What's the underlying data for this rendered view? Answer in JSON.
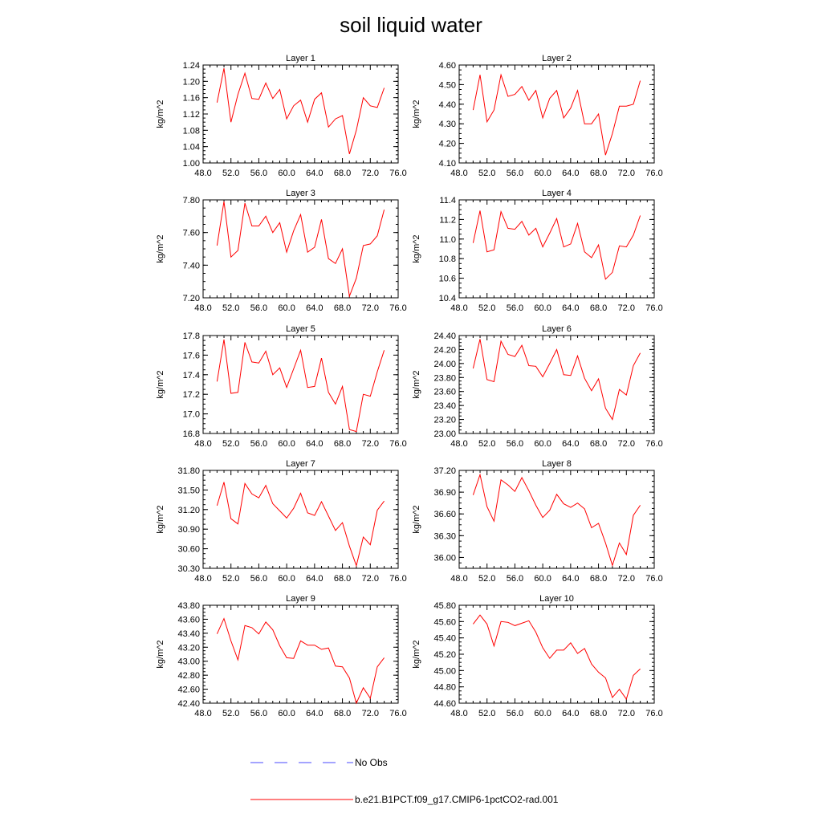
{
  "title": "soil liquid water",
  "legend": {
    "items": [
      {
        "label": "No Obs",
        "color": "#4a4aff",
        "dash": true
      },
      {
        "label": "b.e21.B1PCT.f09_g17.CMIP6-1pctCO2-rad.001",
        "color": "#ff0000",
        "dash": false
      }
    ]
  },
  "chart_data": [
    {
      "type": "line",
      "title": "Layer 1",
      "xlabel": "",
      "ylabel": "kg/m^2",
      "xlim": [
        48,
        76
      ],
      "ylim": [
        1.0,
        1.24
      ],
      "xticks": [
        "48.0",
        "52.0",
        "56.0",
        "60.0",
        "64.0",
        "68.0",
        "72.0",
        "76.0"
      ],
      "yticks": [
        "1.00",
        "1.04",
        "1.08",
        "1.12",
        "1.16",
        "1.20",
        "1.24"
      ],
      "series": [
        {
          "color": "#ff0000",
          "x": [
            50,
            51,
            52,
            53,
            54,
            55,
            56,
            57,
            58,
            59,
            60,
            61,
            62,
            63,
            64,
            65,
            66,
            67,
            68,
            69,
            70,
            71,
            72,
            73,
            74
          ],
          "values": [
            1.148,
            1.232,
            1.1,
            1.168,
            1.22,
            1.158,
            1.156,
            1.196,
            1.158,
            1.18,
            1.108,
            1.14,
            1.154,
            1.1,
            1.156,
            1.172,
            1.088,
            1.108,
            1.116,
            1.022,
            1.08,
            1.16,
            1.14,
            1.136,
            1.184
          ]
        }
      ]
    },
    {
      "type": "line",
      "title": "Layer 2",
      "xlabel": "",
      "ylabel": "kg/m^2",
      "xlim": [
        48,
        76
      ],
      "ylim": [
        4.1,
        4.6
      ],
      "xticks": [
        "48.0",
        "52.0",
        "56.0",
        "60.0",
        "64.0",
        "68.0",
        "72.0",
        "76.0"
      ],
      "yticks": [
        "4.10",
        "4.20",
        "4.30",
        "4.40",
        "4.50",
        "4.60"
      ],
      "series": [
        {
          "color": "#ff0000",
          "x": [
            50,
            51,
            52,
            53,
            54,
            55,
            56,
            57,
            58,
            59,
            60,
            61,
            62,
            63,
            64,
            65,
            66,
            67,
            68,
            69,
            70,
            71,
            72,
            73,
            74
          ],
          "values": [
            4.37,
            4.55,
            4.31,
            4.37,
            4.55,
            4.44,
            4.45,
            4.49,
            4.42,
            4.47,
            4.33,
            4.43,
            4.47,
            4.33,
            4.38,
            4.47,
            4.3,
            4.3,
            4.35,
            4.14,
            4.25,
            4.39,
            4.39,
            4.4,
            4.52
          ]
        }
      ]
    },
    {
      "type": "line",
      "title": "Layer 3",
      "xlabel": "",
      "ylabel": "kg/m^2",
      "xlim": [
        48,
        76
      ],
      "ylim": [
        7.2,
        7.8
      ],
      "xticks": [
        "48.0",
        "52.0",
        "56.0",
        "60.0",
        "64.0",
        "68.0",
        "72.0",
        "76.0"
      ],
      "yticks": [
        "7.20",
        "7.40",
        "7.60",
        "7.80"
      ],
      "series": [
        {
          "color": "#ff0000",
          "x": [
            50,
            51,
            52,
            53,
            54,
            55,
            56,
            57,
            58,
            59,
            60,
            61,
            62,
            63,
            64,
            65,
            66,
            67,
            68,
            69,
            70,
            71,
            72,
            73,
            74
          ],
          "values": [
            7.52,
            7.79,
            7.45,
            7.49,
            7.78,
            7.64,
            7.64,
            7.7,
            7.6,
            7.66,
            7.48,
            7.61,
            7.71,
            7.48,
            7.51,
            7.68,
            7.44,
            7.41,
            7.5,
            7.21,
            7.32,
            7.52,
            7.53,
            7.58,
            7.74
          ]
        }
      ]
    },
    {
      "type": "line",
      "title": "Layer 4",
      "xlabel": "",
      "ylabel": "kg/m^2",
      "xlim": [
        48,
        76
      ],
      "ylim": [
        10.4,
        11.4
      ],
      "xticks": [
        "48.0",
        "52.0",
        "56.0",
        "60.0",
        "64.0",
        "68.0",
        "72.0",
        "76.0"
      ],
      "yticks": [
        "10.4",
        "10.6",
        "10.8",
        "11.0",
        "11.2",
        "11.4"
      ],
      "series": [
        {
          "color": "#ff0000",
          "x": [
            50,
            51,
            52,
            53,
            54,
            55,
            56,
            57,
            58,
            59,
            60,
            61,
            62,
            63,
            64,
            65,
            66,
            67,
            68,
            69,
            70,
            71,
            72,
            73,
            74
          ],
          "values": [
            10.96,
            11.29,
            10.87,
            10.89,
            11.28,
            11.11,
            11.1,
            11.18,
            11.04,
            11.11,
            10.92,
            11.06,
            11.21,
            10.92,
            10.95,
            11.16,
            10.87,
            10.81,
            10.94,
            10.59,
            10.66,
            10.93,
            10.92,
            11.04,
            11.24
          ]
        }
      ]
    },
    {
      "type": "line",
      "title": "Layer 5",
      "xlabel": "",
      "ylabel": "kg/m^2",
      "xlim": [
        48,
        76
      ],
      "ylim": [
        16.8,
        17.8
      ],
      "xticks": [
        "48.0",
        "52.0",
        "56.0",
        "60.0",
        "64.0",
        "68.0",
        "72.0",
        "76.0"
      ],
      "yticks": [
        "16.8",
        "17.0",
        "17.2",
        "17.4",
        "17.6",
        "17.8"
      ],
      "series": [
        {
          "color": "#ff0000",
          "x": [
            50,
            51,
            52,
            53,
            54,
            55,
            56,
            57,
            58,
            59,
            60,
            61,
            62,
            63,
            64,
            65,
            66,
            67,
            68,
            69,
            70,
            71,
            72,
            73,
            74
          ],
          "values": [
            17.33,
            17.76,
            17.21,
            17.22,
            17.73,
            17.53,
            17.52,
            17.64,
            17.4,
            17.47,
            17.27,
            17.46,
            17.65,
            17.27,
            17.28,
            17.57,
            17.22,
            17.1,
            17.28,
            16.84,
            16.82,
            17.2,
            17.18,
            17.43,
            17.65
          ]
        }
      ]
    },
    {
      "type": "line",
      "title": "Layer 6",
      "xlabel": "",
      "ylabel": "kg/m^2",
      "xlim": [
        48,
        76
      ],
      "ylim": [
        23.0,
        24.4
      ],
      "xticks": [
        "48.0",
        "52.0",
        "56.0",
        "60.0",
        "64.0",
        "68.0",
        "72.0",
        "76.0"
      ],
      "yticks": [
        "23.00",
        "23.20",
        "23.40",
        "23.60",
        "23.80",
        "24.00",
        "24.20",
        "24.40"
      ],
      "series": [
        {
          "color": "#ff0000",
          "x": [
            50,
            51,
            52,
            53,
            54,
            55,
            56,
            57,
            58,
            59,
            60,
            61,
            62,
            63,
            64,
            65,
            66,
            67,
            68,
            69,
            70,
            71,
            72,
            73,
            74
          ],
          "values": [
            23.93,
            24.35,
            23.77,
            23.74,
            24.32,
            24.13,
            24.1,
            24.26,
            23.97,
            23.96,
            23.81,
            24.0,
            24.2,
            23.84,
            23.83,
            24.11,
            23.79,
            23.61,
            23.78,
            23.36,
            23.2,
            23.63,
            23.55,
            23.97,
            24.15
          ]
        }
      ]
    },
    {
      "type": "line",
      "title": "Layer 7",
      "xlabel": "",
      "ylabel": "kg/m^2",
      "xlim": [
        48,
        76
      ],
      "ylim": [
        30.3,
        31.8
      ],
      "xticks": [
        "48.0",
        "52.0",
        "56.0",
        "60.0",
        "64.0",
        "68.0",
        "72.0",
        "76.0"
      ],
      "yticks": [
        "30.30",
        "30.60",
        "30.90",
        "31.20",
        "31.50",
        "31.80"
      ],
      "series": [
        {
          "color": "#ff0000",
          "x": [
            50,
            51,
            52,
            53,
            54,
            55,
            56,
            57,
            58,
            59,
            60,
            61,
            62,
            63,
            64,
            65,
            66,
            67,
            68,
            69,
            70,
            71,
            72,
            73,
            74
          ],
          "values": [
            31.26,
            31.62,
            31.06,
            30.98,
            31.6,
            31.44,
            31.38,
            31.57,
            31.29,
            31.18,
            31.07,
            31.22,
            31.45,
            31.15,
            31.11,
            31.32,
            31.1,
            30.88,
            31.0,
            30.64,
            30.34,
            30.78,
            30.66,
            31.19,
            31.33
          ]
        }
      ]
    },
    {
      "type": "line",
      "title": "Layer 8",
      "xlabel": "",
      "ylabel": "kg/m^2",
      "xlim": [
        48,
        76
      ],
      "ylim": [
        35.85,
        37.2
      ],
      "xticks": [
        "48.0",
        "52.0",
        "56.0",
        "60.0",
        "64.0",
        "68.0",
        "72.0",
        "76.0"
      ],
      "yticks": [
        "36.00",
        "36.30",
        "36.60",
        "36.90",
        "37.20"
      ],
      "series": [
        {
          "color": "#ff0000",
          "x": [
            50,
            51,
            52,
            53,
            54,
            55,
            56,
            57,
            58,
            59,
            60,
            61,
            62,
            63,
            64,
            65,
            66,
            67,
            68,
            69,
            70,
            71,
            72,
            73,
            74
          ],
          "values": [
            36.86,
            37.14,
            36.7,
            36.5,
            37.07,
            37.0,
            36.91,
            37.1,
            36.92,
            36.72,
            36.55,
            36.65,
            36.87,
            36.74,
            36.69,
            36.75,
            36.67,
            36.41,
            36.47,
            36.2,
            35.89,
            36.2,
            36.04,
            36.58,
            36.72
          ]
        }
      ]
    },
    {
      "type": "line",
      "title": "Layer 9",
      "xlabel": "",
      "ylabel": "kg/m^2",
      "xlim": [
        48,
        76
      ],
      "ylim": [
        42.4,
        43.8
      ],
      "xticks": [
        "48.0",
        "52.0",
        "56.0",
        "60.0",
        "64.0",
        "68.0",
        "72.0",
        "76.0"
      ],
      "yticks": [
        "42.40",
        "42.60",
        "42.80",
        "43.00",
        "43.20",
        "43.40",
        "43.60",
        "43.80"
      ],
      "series": [
        {
          "color": "#ff0000",
          "x": [
            50,
            51,
            52,
            53,
            54,
            55,
            56,
            57,
            58,
            59,
            60,
            61,
            62,
            63,
            64,
            65,
            66,
            67,
            68,
            69,
            70,
            71,
            72,
            73,
            74
          ],
          "values": [
            43.39,
            43.61,
            43.29,
            43.02,
            43.51,
            43.48,
            43.39,
            43.56,
            43.45,
            43.22,
            43.05,
            43.04,
            43.29,
            43.23,
            43.23,
            43.17,
            43.19,
            42.93,
            42.92,
            42.76,
            42.4,
            42.62,
            42.47,
            42.92,
            43.05
          ]
        }
      ]
    },
    {
      "type": "line",
      "title": "Layer 10",
      "xlabel": "",
      "ylabel": "kg/m^2",
      "xlim": [
        48,
        76
      ],
      "ylim": [
        44.6,
        45.8
      ],
      "xticks": [
        "48.0",
        "52.0",
        "56.0",
        "60.0",
        "64.0",
        "68.0",
        "72.0",
        "76.0"
      ],
      "yticks": [
        "44.60",
        "44.80",
        "45.00",
        "45.20",
        "45.40",
        "45.60",
        "45.80"
      ],
      "series": [
        {
          "color": "#ff0000",
          "x": [
            50,
            51,
            52,
            53,
            54,
            55,
            56,
            57,
            58,
            59,
            60,
            61,
            62,
            63,
            64,
            65,
            66,
            67,
            68,
            69,
            70,
            71,
            72,
            73,
            74
          ],
          "values": [
            45.57,
            45.68,
            45.57,
            45.3,
            45.6,
            45.59,
            45.55,
            45.58,
            45.61,
            45.47,
            45.28,
            45.15,
            45.25,
            45.25,
            45.34,
            45.21,
            45.27,
            45.08,
            44.98,
            44.91,
            44.67,
            44.77,
            44.65,
            44.94,
            45.02
          ]
        }
      ]
    }
  ]
}
